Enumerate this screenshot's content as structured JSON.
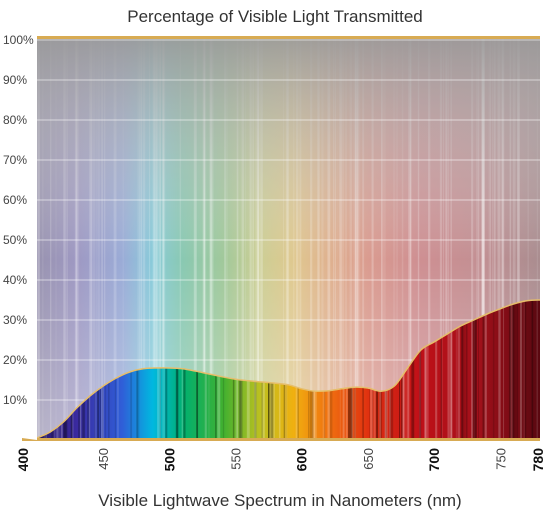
{
  "chart_data": {
    "type": "area",
    "title": "Percentage of Visible Light Transmitted",
    "xlabel": "Visible Lightwave Spectrum in Nanometers (nm)",
    "ylabel": "",
    "xlim": [
      400,
      780
    ],
    "ylim": [
      0,
      100
    ],
    "x_ticks": [
      "400",
      "450",
      "500",
      "550",
      "600",
      "650",
      "700",
      "750",
      "780"
    ],
    "x_ticks_bold": [
      "400",
      "500",
      "600",
      "700",
      "780"
    ],
    "y_ticks": [
      "10%",
      "20%",
      "30%",
      "40%",
      "50%",
      "60%",
      "70%",
      "80%",
      "90%",
      "100%"
    ],
    "grid": true,
    "series": [
      {
        "x": [
          400,
          410,
          420,
          430,
          440,
          450,
          460,
          470,
          480,
          490,
          500,
          510,
          520,
          530,
          540,
          550,
          560,
          570,
          580,
          590,
          600,
          610,
          620,
          630,
          640,
          650,
          660,
          670,
          680,
          690,
          700,
          710,
          720,
          730,
          740,
          750,
          760,
          770,
          780
        ],
        "values": [
          0.5,
          2,
          4.5,
          8,
          11,
          13.5,
          15.5,
          17,
          17.8,
          18,
          18,
          17.8,
          17.2,
          16.5,
          15.8,
          15.2,
          14.8,
          14.5,
          14.2,
          13.8,
          12.8,
          12.2,
          12.3,
          12.8,
          13.2,
          13,
          12.2,
          13.5,
          18,
          22.5,
          24.5,
          26.5,
          28.5,
          30,
          31.5,
          32.8,
          34,
          34.8,
          35
        ]
      }
    ],
    "colors": {
      "frame": "#d8ab53",
      "curve": "#e6be6a",
      "plot_background": "#a5a5a5",
      "grid": "#ffffff"
    }
  }
}
